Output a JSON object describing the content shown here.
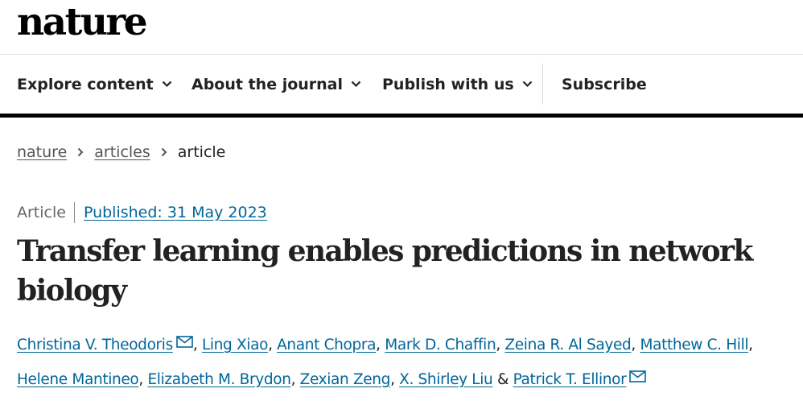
{
  "site": {
    "logo": "nature"
  },
  "nav": {
    "items": [
      {
        "label": "Explore content",
        "icon": "chevron-down-icon"
      },
      {
        "label": "About the journal",
        "icon": "chevron-down-icon"
      },
      {
        "label": "Publish with us",
        "icon": "chevron-down-icon"
      }
    ],
    "subscribe": "Subscribe"
  },
  "breadcrumb": {
    "items": [
      "nature",
      "articles"
    ],
    "current": "article",
    "separator_icon": "chevron-right-icon"
  },
  "article": {
    "type": "Article",
    "published": "Published: 31 May 2023",
    "title": "Transfer learning enables predictions in network biology",
    "authors": [
      {
        "name": "Christina V. Theodoris",
        "sep": ",",
        "email_icon": true
      },
      {
        "name": "Ling Xiao",
        "sep": ","
      },
      {
        "name": "Anant Chopra",
        "sep": ","
      },
      {
        "name": "Mark D. Chaffin",
        "sep": ","
      },
      {
        "name": "Zeina R. Al Sayed",
        "sep": ","
      },
      {
        "name": "Matthew C. Hill",
        "sep": ","
      },
      {
        "name": "Helene Mantineo",
        "sep": ","
      },
      {
        "name": "Elizabeth M. Brydon",
        "sep": ","
      },
      {
        "name": "Zexian Zeng",
        "sep": ","
      },
      {
        "name": "X. Shirley Liu",
        "sep": "&"
      },
      {
        "name": "Patrick T. Ellinor",
        "sep": "",
        "email_icon": true
      }
    ]
  },
  "colors": {
    "link": "#006699",
    "text": "#222222",
    "muted": "#666666",
    "rule": "#000000"
  }
}
